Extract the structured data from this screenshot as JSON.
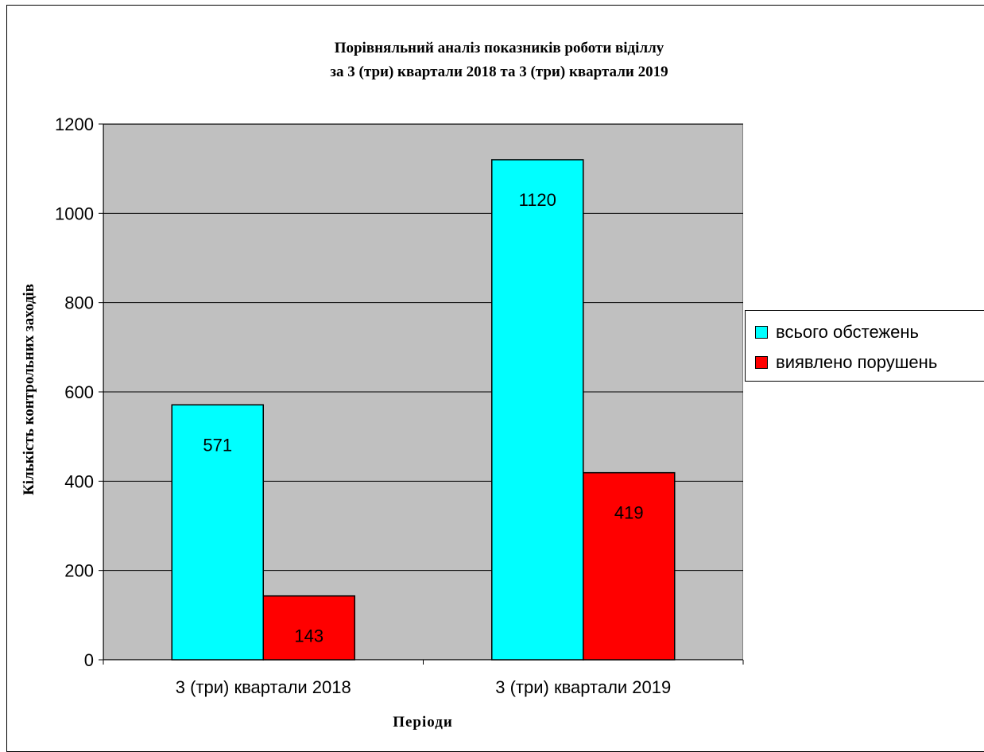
{
  "chart_data": {
    "type": "bar",
    "title_line1": "Порівняльний аналіз показників роботи віділлу",
    "title_line2": "за 3 (три) квартали 2018 та 3 (три) квартали 2019",
    "xlabel": "Періоди",
    "ylabel": "Кількість контрольних заходів",
    "categories": [
      "3 (три) квартали 2018",
      "3 (три) квартали 2019"
    ],
    "series": [
      {
        "name": "всього обстежень",
        "values": [
          571,
          1120
        ],
        "color": "#00ffff"
      },
      {
        "name": "виявлено порушень",
        "values": [
          143,
          419
        ],
        "color": "#ff0000"
      }
    ],
    "ylim": [
      0,
      1200
    ],
    "yticks": [
      0,
      200,
      400,
      600,
      800,
      1000,
      1200
    ],
    "grid": true,
    "legend_position": "right",
    "plot_background": "#c0c0c0"
  }
}
